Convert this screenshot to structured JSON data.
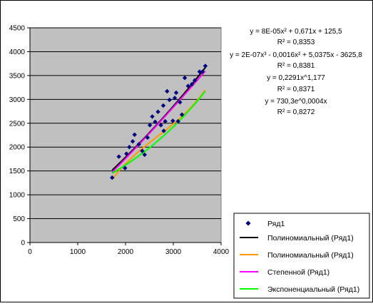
{
  "chart_data": {
    "type": "scatter",
    "title": "",
    "xlabel": "",
    "ylabel": "",
    "xlim": [
      0,
      4000
    ],
    "ylim": [
      0,
      4500
    ],
    "x_ticks": [
      0,
      1000,
      2000,
      3000,
      4000
    ],
    "y_ticks": [
      0,
      500,
      1000,
      1500,
      2000,
      2500,
      3000,
      3500,
      4000,
      4500
    ],
    "grid": "horizontal",
    "plot_background": "#c0c0c0",
    "legend_position": "bottom-right",
    "series": [
      {
        "name": "Ряд1",
        "kind": "points",
        "color": "#000080",
        "points": [
          [
            1720,
            1360
          ],
          [
            1860,
            1800
          ],
          [
            1990,
            1560
          ],
          [
            2020,
            1860
          ],
          [
            2080,
            2000
          ],
          [
            2150,
            2120
          ],
          [
            2190,
            2260
          ],
          [
            2280,
            2060
          ],
          [
            2350,
            1920
          ],
          [
            2400,
            1840
          ],
          [
            2460,
            2200
          ],
          [
            2510,
            2460
          ],
          [
            2560,
            2640
          ],
          [
            2620,
            2530
          ],
          [
            2680,
            2740
          ],
          [
            2740,
            2460
          ],
          [
            2790,
            2870
          ],
          [
            2800,
            2340
          ],
          [
            2830,
            2540
          ],
          [
            2870,
            3170
          ],
          [
            2920,
            2990
          ],
          [
            2990,
            2550
          ],
          [
            3030,
            3030
          ],
          [
            3060,
            3140
          ],
          [
            3100,
            2540
          ],
          [
            3140,
            2940
          ],
          [
            3180,
            2680
          ],
          [
            3240,
            3450
          ],
          [
            3310,
            3280
          ],
          [
            3390,
            3320
          ],
          [
            3450,
            3400
          ],
          [
            3550,
            3580
          ],
          [
            3610,
            3580
          ],
          [
            3670,
            3700
          ]
        ]
      },
      {
        "name": "Полиномиальный (Ряд1)",
        "kind": "trend",
        "model": "poly2",
        "color": "#000000",
        "coeffs": [
          8e-05,
          0.671,
          125.5
        ],
        "x_range": [
          1720,
          3670
        ]
      },
      {
        "name": "Полиномиальный (Ряд1)",
        "kind": "trend",
        "model": "poly3",
        "color": "#ff9900",
        "coeffs": [
          2e-07,
          -0.0016,
          5.0375,
          -3625.8
        ],
        "x_range": [
          1720,
          3670
        ]
      },
      {
        "name": "Степенной (Ряд1)",
        "kind": "trend",
        "model": "power",
        "color": "#ff00ff",
        "coeffs": [
          0.2291,
          1.177
        ],
        "x_range": [
          1720,
          3670
        ]
      },
      {
        "name": "Экспоненциальный (Ряд1)",
        "kind": "trend",
        "model": "exp",
        "color": "#00ff00",
        "coeffs": [
          730.3,
          0.0004
        ],
        "x_range": [
          1720,
          3670
        ]
      }
    ],
    "annotations": [
      {
        "text": "y = 8E-05x² + 0,671x + 125,5"
      },
      {
        "text": "R² = 0,8353"
      },
      {
        "text": "y = 2E-07x³ - 0,0016x² + 5,0375x - 3625,8"
      },
      {
        "text": "R² = 0,8381"
      },
      {
        "text": "y = 0,2291x^1,177"
      },
      {
        "text": "R² = 0,8371"
      },
      {
        "text": "y = 730,3e^0,0004x"
      },
      {
        "text": "R² = 0,8272"
      }
    ]
  }
}
